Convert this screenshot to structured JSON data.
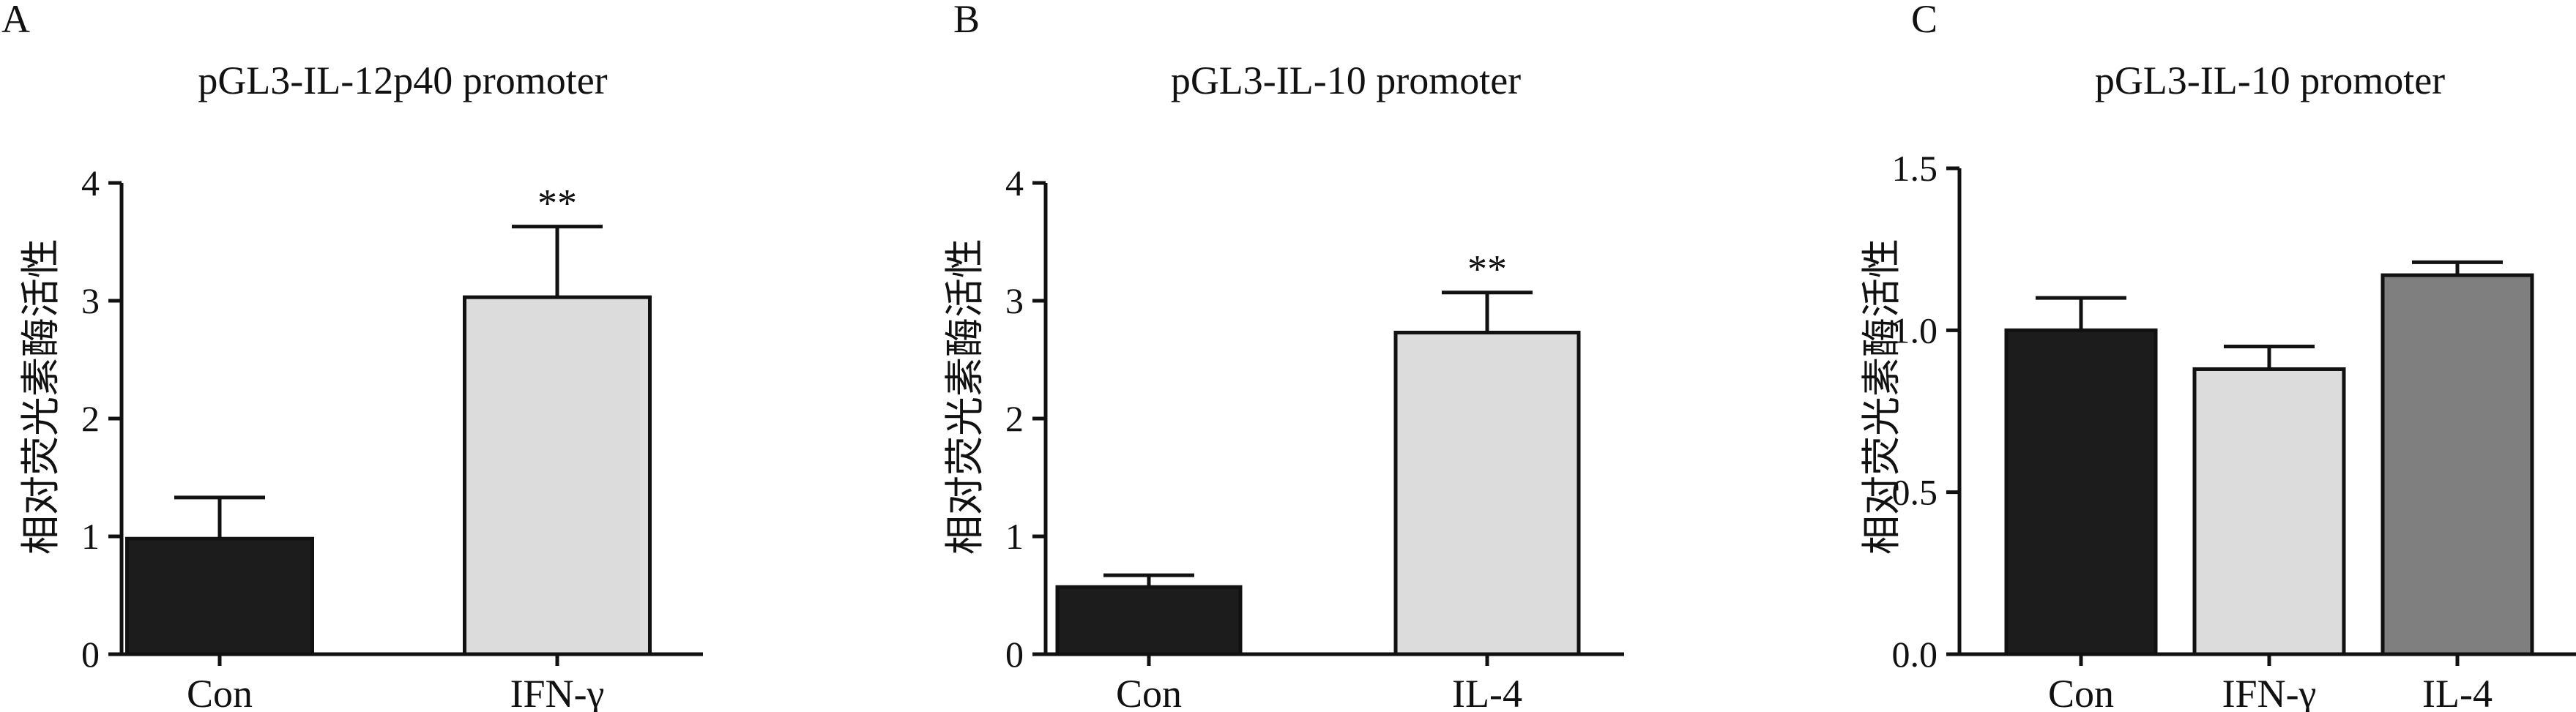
{
  "chart_data": [
    {
      "type": "bar",
      "panel": "A",
      "title": "pGL3-IL-12p40 promoter",
      "ylabel": "相对荧光素酶活性",
      "xlabel": "",
      "ylim": [
        0,
        4
      ],
      "yticks": [
        "0",
        "1",
        "2",
        "3",
        "4"
      ],
      "categories": [
        "Con",
        "IFN-γ"
      ],
      "values": [
        0.98,
        3.03
      ],
      "errors": [
        0.35,
        0.6
      ],
      "annotations": [
        "",
        "**"
      ],
      "colors": [
        "#1c1c1c",
        "#dcdcdc"
      ]
    },
    {
      "type": "bar",
      "panel": "B",
      "title": "pGL3-IL-10 promoter",
      "ylabel": "相对荧光素酶活性",
      "xlabel": "",
      "ylim": [
        0,
        4
      ],
      "yticks": [
        "0",
        "1",
        "2",
        "3",
        "4"
      ],
      "categories": [
        "Con",
        "IL-4"
      ],
      "values": [
        0.57,
        2.73
      ],
      "errors": [
        0.1,
        0.34
      ],
      "annotations": [
        "",
        "**"
      ],
      "colors": [
        "#1c1c1c",
        "#dcdcdc"
      ]
    },
    {
      "type": "bar",
      "panel": "C",
      "title": "pGL3-IL-10 promoter",
      "ylabel": "相对荧光素酶活性",
      "xlabel": "",
      "ylim": [
        0,
        1.5
      ],
      "yticks": [
        "0.0",
        "0.5",
        "1.0",
        "1.5"
      ],
      "categories": [
        "Con",
        "IFN-γ",
        "IL-4"
      ],
      "values": [
        1.0,
        0.88,
        1.17
      ],
      "errors": [
        0.1,
        0.07,
        0.04
      ],
      "annotations": [
        "",
        "",
        ""
      ],
      "colors": [
        "#1c1c1c",
        "#dcdcdc",
        "#7f7f7f"
      ]
    }
  ]
}
